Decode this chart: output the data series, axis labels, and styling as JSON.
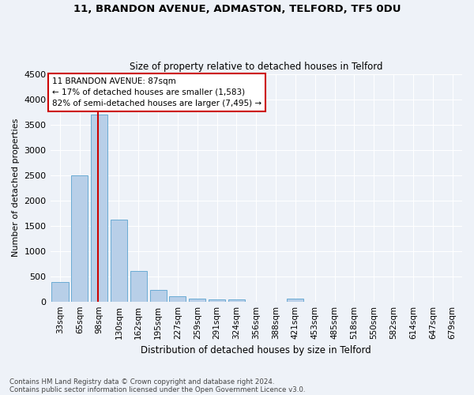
{
  "title": "11, BRANDON AVENUE, ADMASTON, TELFORD, TF5 0DU",
  "subtitle": "Size of property relative to detached houses in Telford",
  "xlabel": "Distribution of detached houses by size in Telford",
  "ylabel": "Number of detached properties",
  "categories": [
    "33sqm",
    "65sqm",
    "98sqm",
    "130sqm",
    "162sqm",
    "195sqm",
    "227sqm",
    "259sqm",
    "291sqm",
    "324sqm",
    "356sqm",
    "388sqm",
    "421sqm",
    "453sqm",
    "485sqm",
    "518sqm",
    "550sqm",
    "582sqm",
    "614sqm",
    "647sqm",
    "679sqm"
  ],
  "values": [
    380,
    2500,
    3700,
    1620,
    600,
    230,
    110,
    65,
    45,
    40,
    0,
    0,
    55,
    0,
    0,
    0,
    0,
    0,
    0,
    0,
    0
  ],
  "bar_color": "#b8cfe8",
  "bar_edgecolor": "#6aabd4",
  "vline_x": 1.93,
  "vline_color": "#cc0000",
  "annotation_title": "11 BRANDON AVENUE: 87sqm",
  "annotation_line2": "← 17% of detached houses are smaller (1,583)",
  "annotation_line3": "82% of semi-detached houses are larger (7,495) →",
  "annotation_box_color": "#cc0000",
  "ylim": [
    0,
    4500
  ],
  "yticks": [
    0,
    500,
    1000,
    1500,
    2000,
    2500,
    3000,
    3500,
    4000,
    4500
  ],
  "footnote1": "Contains HM Land Registry data © Crown copyright and database right 2024.",
  "footnote2": "Contains public sector information licensed under the Open Government Licence v3.0.",
  "background_color": "#eef2f8",
  "grid_color": "#ffffff"
}
